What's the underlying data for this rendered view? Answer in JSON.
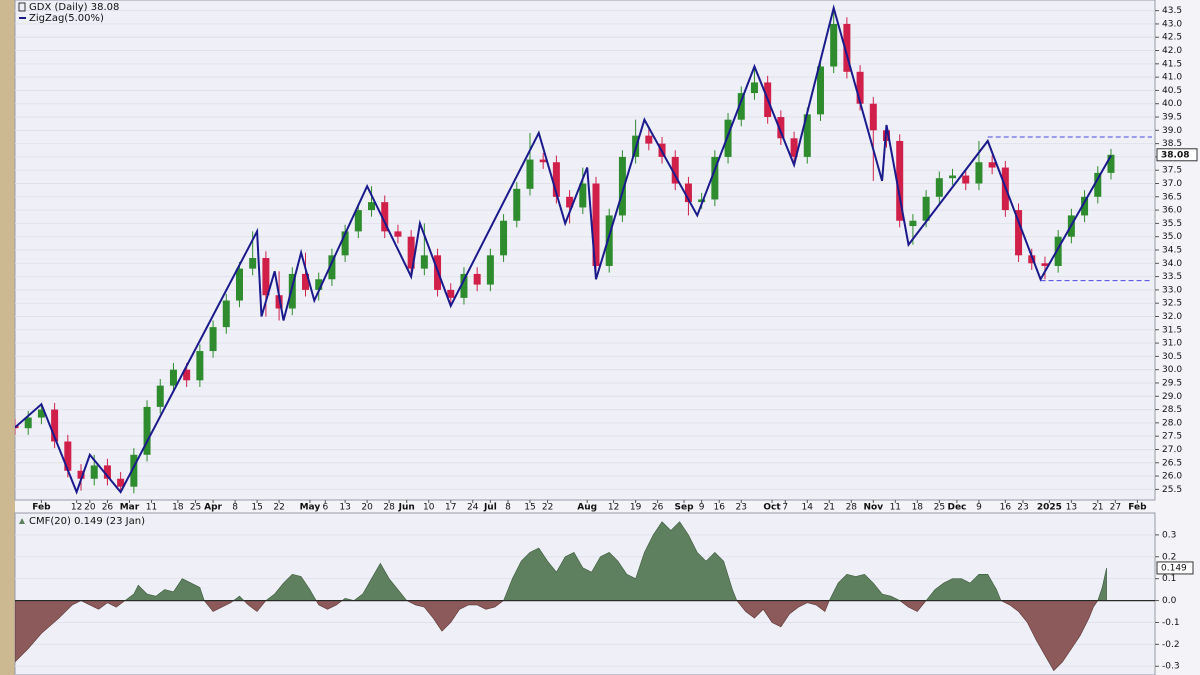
{
  "chart_data": [
    {
      "type": "candlestick",
      "title": "GDX (Daily) 38.08",
      "up_color": "#2e8b2e",
      "down_color": "#d0204a",
      "x": [
        0,
        3,
        6,
        9,
        12,
        15,
        18,
        21,
        24,
        27,
        30,
        33,
        36,
        39,
        42,
        45,
        48,
        51,
        54,
        57,
        60,
        63,
        66,
        69,
        72,
        75,
        78,
        81,
        84,
        87,
        90,
        93,
        96,
        99,
        102,
        105,
        108,
        111,
        114,
        117,
        120,
        123,
        126,
        129,
        132,
        135,
        138,
        141,
        144,
        147,
        150,
        153,
        156,
        159,
        162,
        165,
        168,
        171,
        174,
        177,
        180,
        183,
        186,
        189,
        192,
        195,
        198,
        201,
        204,
        207,
        210,
        213,
        216,
        219,
        222,
        225,
        228,
        231,
        234,
        237,
        240,
        243,
        246,
        249
      ],
      "open": [
        27.9,
        27.8,
        28.2,
        28.5,
        27.3,
        26.2,
        25.9,
        26.4,
        25.9,
        25.6,
        26.8,
        28.6,
        29.4,
        30.0,
        29.6,
        30.7,
        31.6,
        32.6,
        33.8,
        34.2,
        32.8,
        32.3,
        33.6,
        33.0,
        33.4,
        34.3,
        35.2,
        36.0,
        36.3,
        35.2,
        35.0,
        33.8,
        34.3,
        33.0,
        32.7,
        33.6,
        33.2,
        34.3,
        35.6,
        36.8,
        37.9,
        37.8,
        36.5,
        36.1,
        37.0,
        33.9,
        35.8,
        38.0,
        38.8,
        38.5,
        38.0,
        37.0,
        36.3,
        36.4,
        38.0,
        39.4,
        40.4,
        40.8,
        39.5,
        38.7,
        38.0,
        39.6,
        41.4,
        43.0,
        41.2,
        40.0,
        39.0,
        38.6,
        35.4,
        35.6,
        36.5,
        37.2,
        37.3,
        37.0,
        37.8,
        37.6,
        36.0,
        34.3,
        34.0,
        33.9,
        35.0,
        35.8,
        36.5,
        37.4
      ],
      "high": [
        28.15,
        28.45,
        28.75,
        28.75,
        27.55,
        26.45,
        26.8,
        26.65,
        26.15,
        27.05,
        28.85,
        29.65,
        30.25,
        30.25,
        30.95,
        31.85,
        32.85,
        34.05,
        35.2,
        34.45,
        33.7,
        33.85,
        34.4,
        33.65,
        34.55,
        35.45,
        36.25,
        36.9,
        36.55,
        35.45,
        35.25,
        35.5,
        34.55,
        33.25,
        33.85,
        33.85,
        34.55,
        35.85,
        37.05,
        38.9,
        38.15,
        38.05,
        36.75,
        37.6,
        37.25,
        36.05,
        38.25,
        39.4,
        39.05,
        38.75,
        38.25,
        37.25,
        36.65,
        38.25,
        39.65,
        40.65,
        41.4,
        41.05,
        39.75,
        38.95,
        39.85,
        41.65,
        43.6,
        43.25,
        41.45,
        40.25,
        39.2,
        38.85,
        35.85,
        36.75,
        37.45,
        37.55,
        37.55,
        38.6,
        38.05,
        37.85,
        36.25,
        34.55,
        34.25,
        35.25,
        36.05,
        36.75,
        37.65,
        38.3
      ],
      "low": [
        27.55,
        27.55,
        27.95,
        27.05,
        25.95,
        25.45,
        25.65,
        25.65,
        25.4,
        25.35,
        26.55,
        28.35,
        29.15,
        29.35,
        29.35,
        30.45,
        31.35,
        32.35,
        33.55,
        32.0,
        31.85,
        32.05,
        32.75,
        32.6,
        33.15,
        34.05,
        34.95,
        35.75,
        34.95,
        34.75,
        33.5,
        33.55,
        32.75,
        32.4,
        32.45,
        32.95,
        32.95,
        34.05,
        35.35,
        36.55,
        37.55,
        36.25,
        35.5,
        35.85,
        33.4,
        33.65,
        35.55,
        37.75,
        38.25,
        37.75,
        36.75,
        35.8,
        36.05,
        36.15,
        37.75,
        39.15,
        40.15,
        39.25,
        38.45,
        37.7,
        37.75,
        39.35,
        41.15,
        40.95,
        39.75,
        37.1,
        38.35,
        35.35,
        34.7,
        35.35,
        36.25,
        36.95,
        36.75,
        36.75,
        37.35,
        35.75,
        34.05,
        33.75,
        33.4,
        33.65,
        34.75,
        35.55,
        36.25,
        37.15
      ],
      "close": [
        27.8,
        28.2,
        28.5,
        27.3,
        26.2,
        25.9,
        26.4,
        25.9,
        25.6,
        26.8,
        28.6,
        29.4,
        30.0,
        29.6,
        30.7,
        31.6,
        32.6,
        33.8,
        34.2,
        32.8,
        32.3,
        33.6,
        33.0,
        33.4,
        34.3,
        35.2,
        36.0,
        36.3,
        35.2,
        35.0,
        33.8,
        34.3,
        33.0,
        32.7,
        33.6,
        33.2,
        34.3,
        35.6,
        36.8,
        37.9,
        37.8,
        36.5,
        36.1,
        37.0,
        33.9,
        35.8,
        38.0,
        38.8,
        38.5,
        38.0,
        37.0,
        36.3,
        36.4,
        38.0,
        39.4,
        40.4,
        40.8,
        39.5,
        38.7,
        38.0,
        39.6,
        41.4,
        43.0,
        41.2,
        40.0,
        39.0,
        38.6,
        35.6,
        35.6,
        36.5,
        37.2,
        37.3,
        37.0,
        37.8,
        37.6,
        36.0,
        34.3,
        34.0,
        33.9,
        35.0,
        35.8,
        36.5,
        37.4,
        38.08
      ],
      "overlay": {
        "name": "ZigZag(5.00%)",
        "color": "#1a1a8c",
        "x": [
          0,
          6,
          14,
          17,
          24,
          55,
          56,
          59,
          61,
          65,
          68,
          80,
          90,
          92,
          99,
          119,
          125,
          130,
          132,
          143,
          155,
          168,
          177,
          186,
          197,
          198,
          203,
          221,
          233,
          249
        ],
        "values": [
          27.83,
          28.7,
          25.4,
          26.8,
          25.4,
          35.2,
          32.0,
          33.7,
          31.85,
          34.4,
          32.6,
          36.9,
          33.5,
          35.5,
          32.4,
          38.9,
          35.5,
          37.6,
          33.4,
          39.4,
          35.8,
          41.4,
          37.7,
          43.6,
          37.1,
          39.2,
          34.7,
          38.6,
          33.4,
          38.05
        ]
      },
      "levels": [
        {
          "value": 38.75,
          "from": 221
        },
        {
          "value": 33.35,
          "from": 233
        }
      ],
      "level_color": "#4a4ae0",
      "xlim": [
        0,
        259
      ],
      "ylim": [
        25.1,
        43.9
      ],
      "grid": true,
      "xticks": [
        {
          "value": 6,
          "label": "Feb"
        },
        {
          "value": 14,
          "label": "12"
        },
        {
          "value": 17,
          "label": "20"
        },
        {
          "value": 21,
          "label": "26"
        },
        {
          "value": 26,
          "label": "Mar"
        },
        {
          "value": 31,
          "label": "11"
        },
        {
          "value": 37,
          "label": "18"
        },
        {
          "value": 41,
          "label": "25"
        },
        {
          "value": 45,
          "label": "Apr"
        },
        {
          "value": 50,
          "label": "8"
        },
        {
          "value": 55,
          "label": "15"
        },
        {
          "value": 60,
          "label": "22"
        },
        {
          "value": 67,
          "label": "May"
        },
        {
          "value": 70.5,
          "label": "6"
        },
        {
          "value": 75,
          "label": "13"
        },
        {
          "value": 80,
          "label": "20"
        },
        {
          "value": 85,
          "label": "28"
        },
        {
          "value": 89,
          "label": "Jun"
        },
        {
          "value": 94,
          "label": "10"
        },
        {
          "value": 99,
          "label": "17"
        },
        {
          "value": 104,
          "label": "24"
        },
        {
          "value": 108,
          "label": "Jul"
        },
        {
          "value": 112,
          "label": "8"
        },
        {
          "value": 117,
          "label": "15"
        },
        {
          "value": 121,
          "label": "22"
        },
        {
          "value": 130,
          "label": "Aug"
        },
        {
          "value": 136,
          "label": "12"
        },
        {
          "value": 141,
          "label": "19"
        },
        {
          "value": 146,
          "label": "26"
        },
        {
          "value": 152,
          "label": "Sep"
        },
        {
          "value": 156,
          "label": "9"
        },
        {
          "value": 160,
          "label": "16"
        },
        {
          "value": 165,
          "label": "23"
        },
        {
          "value": 172,
          "label": "Oct"
        },
        {
          "value": 175,
          "label": "7"
        },
        {
          "value": 180,
          "label": "14"
        },
        {
          "value": 185,
          "label": "21"
        },
        {
          "value": 190,
          "label": "28"
        },
        {
          "value": 195,
          "label": "Nov"
        },
        {
          "value": 200,
          "label": "11"
        },
        {
          "value": 205,
          "label": "18"
        },
        {
          "value": 210,
          "label": "25"
        },
        {
          "value": 214,
          "label": "Dec"
        },
        {
          "value": 219,
          "label": "9"
        },
        {
          "value": 225,
          "label": "16"
        },
        {
          "value": 229,
          "label": "23"
        },
        {
          "value": 235,
          "label": "2025"
        },
        {
          "value": 240,
          "label": "13"
        },
        {
          "value": 246,
          "label": "21"
        },
        {
          "value": 250,
          "label": "27"
        },
        {
          "value": 255,
          "label": "Feb"
        }
      ],
      "yticks": [
        25.5,
        {
          "value": 26,
          "label": "26.0"
        },
        26.5,
        {
          "value": 27,
          "label": "27.0"
        },
        27.5,
        {
          "value": 28,
          "label": "28.0"
        },
        28.5,
        {
          "value": 29,
          "label": "29.0"
        },
        29.5,
        {
          "value": 30,
          "label": "30.0"
        },
        30.5,
        {
          "value": 31,
          "label": "31.0"
        },
        31.5,
        {
          "value": 32,
          "label": "32.0"
        },
        32.5,
        {
          "value": 33,
          "label": "33.0"
        },
        33.5,
        {
          "value": 34,
          "label": "34.0"
        },
        34.5,
        {
          "value": 35,
          "label": "35.0"
        },
        35.5,
        {
          "value": 36,
          "label": "36.0"
        },
        36.5,
        {
          "value": 37,
          "label": "37.0"
        },
        37.5,
        {
          "value": 38,
          "label": "38.0"
        },
        38.5,
        {
          "value": 39,
          "label": "39.0"
        },
        39.5,
        {
          "value": 40,
          "label": "40.0"
        },
        40.5,
        {
          "value": 41,
          "label": "41.0"
        },
        41.5,
        {
          "value": 42,
          "label": "42.0"
        },
        42.5,
        {
          "value": 43,
          "label": "43.0"
        },
        43.5
      ]
    },
    {
      "type": "area",
      "title": "CMF(20) 0.149 (23 Jan)",
      "pos_color": "#5f805f",
      "neg_color": "#8c5a5a",
      "x": [
        0,
        3,
        6,
        10,
        13,
        15,
        17,
        19,
        21,
        23,
        25,
        27,
        28,
        30,
        32,
        34,
        36,
        38,
        40,
        42,
        43,
        45,
        47,
        49,
        51,
        53,
        55,
        57,
        59,
        61,
        63,
        65,
        67,
        69,
        71,
        73,
        75,
        77,
        79,
        81,
        83,
        85,
        87,
        89,
        91,
        93,
        95,
        97,
        99,
        101,
        103,
        105,
        107,
        109,
        111,
        113,
        115,
        117,
        119,
        121,
        123,
        125,
        127,
        129,
        131,
        133,
        135,
        137,
        139,
        141,
        143,
        145,
        147,
        149,
        151,
        153,
        155,
        157,
        159,
        161,
        163,
        164,
        166,
        168,
        170,
        172,
        174,
        176,
        178,
        180,
        182,
        184,
        185,
        187,
        189,
        191,
        193,
        195,
        197,
        199,
        201,
        203,
        205,
        207,
        209,
        211,
        213,
        215,
        217,
        219,
        221,
        223,
        224,
        226,
        228,
        230,
        232,
        234,
        236,
        238,
        240,
        242,
        243,
        244,
        245,
        246,
        247,
        248
      ],
      "values": [
        -0.28,
        -0.22,
        -0.15,
        -0.08,
        -0.02,
        0.0,
        -0.02,
        -0.04,
        -0.01,
        -0.03,
        0.0,
        0.03,
        0.07,
        0.03,
        0.02,
        0.05,
        0.04,
        0.1,
        0.08,
        0.06,
        0.0,
        -0.05,
        -0.03,
        -0.01,
        0.02,
        -0.02,
        -0.05,
        0.0,
        0.03,
        0.08,
        0.12,
        0.11,
        0.05,
        -0.02,
        -0.04,
        -0.02,
        0.01,
        0.0,
        0.03,
        0.1,
        0.17,
        0.1,
        0.05,
        0.0,
        -0.02,
        -0.03,
        -0.08,
        -0.14,
        -0.1,
        -0.04,
        -0.02,
        -0.02,
        -0.04,
        -0.03,
        0.0,
        0.1,
        0.18,
        0.22,
        0.24,
        0.18,
        0.13,
        0.2,
        0.22,
        0.15,
        0.13,
        0.2,
        0.22,
        0.18,
        0.12,
        0.1,
        0.22,
        0.3,
        0.36,
        0.32,
        0.36,
        0.3,
        0.22,
        0.18,
        0.22,
        0.18,
        0.05,
        0.0,
        -0.05,
        -0.08,
        -0.04,
        -0.1,
        -0.12,
        -0.06,
        -0.03,
        -0.01,
        -0.02,
        -0.05,
        0.0,
        0.08,
        0.12,
        0.11,
        0.12,
        0.08,
        0.03,
        0.02,
        0.0,
        -0.03,
        -0.05,
        0.0,
        0.05,
        0.08,
        0.1,
        0.1,
        0.08,
        0.12,
        0.12,
        0.05,
        0.0,
        -0.02,
        -0.05,
        -0.1,
        -0.18,
        -0.25,
        -0.32,
        -0.28,
        -0.22,
        -0.16,
        -0.12,
        -0.08,
        -0.03,
        0.0,
        0.06,
        0.149
      ],
      "xlim": [
        0,
        259
      ],
      "ylim": [
        -0.34,
        0.4
      ],
      "grid": true,
      "yticks": [
        0.3,
        0.2,
        0.1,
        {
          "value": 0,
          "label": "0.0"
        },
        -0.1,
        -0.2,
        -0.3
      ]
    }
  ]
}
